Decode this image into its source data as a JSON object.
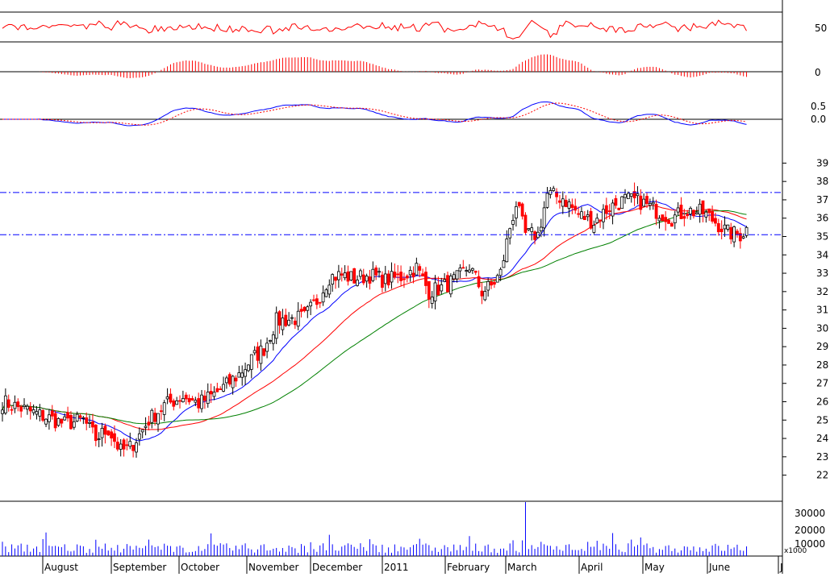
{
  "chart_data": {
    "type": "candlestick",
    "title": "",
    "colors": {
      "up": "#000000",
      "down": "#ff0000",
      "upFill": "#ffffff",
      "ma_short": "#0000ff",
      "ma_mid": "#ff0000",
      "ma_long": "#008000",
      "hline": "#0000ff",
      "volume": "#0000ff",
      "rsi": "#ff0000",
      "macd": "#0000ff",
      "hist": "#ff0000"
    },
    "x_month_labels": [
      "August",
      "September",
      "October",
      "November",
      "December",
      "2011",
      "February",
      "March",
      "April",
      "May",
      "June",
      "J"
    ],
    "price_axis": {
      "ticks": [
        22,
        23,
        24,
        25,
        26,
        27,
        28,
        29,
        30,
        31,
        32,
        33,
        34,
        35,
        36,
        37,
        38,
        39
      ],
      "ylim": [
        21.5,
        39.5
      ]
    },
    "horizontal_lines": [
      37.4,
      35.1
    ],
    "volume_axis": {
      "ticks": [
        "30000",
        "20000",
        "10000"
      ],
      "unit": "x1000"
    },
    "macd_hist_axis": {
      "ticks": [
        "0"
      ]
    },
    "rsi_axis": {
      "ticks": [
        "50"
      ]
    },
    "macd_axis": {
      "ticks": [
        "0.5",
        "0.0"
      ]
    },
    "price_anchor_points": [
      [
        0,
        26.0
      ],
      [
        10,
        25.4
      ],
      [
        20,
        24.8
      ],
      [
        26,
        25.0
      ],
      [
        30,
        24.0
      ],
      [
        34,
        24.5
      ],
      [
        38,
        23.3
      ],
      [
        41,
        23.5
      ],
      [
        44,
        24.2
      ],
      [
        47,
        25.0
      ],
      [
        52,
        25.8
      ],
      [
        58,
        26.3
      ],
      [
        63,
        25.9
      ],
      [
        68,
        26.4
      ],
      [
        72,
        26.9
      ],
      [
        76,
        27.5
      ],
      [
        80,
        28.3
      ],
      [
        84,
        28.9
      ],
      [
        88,
        30.4
      ],
      [
        93,
        30.5
      ],
      [
        97,
        30.6
      ],
      [
        101,
        31.5
      ],
      [
        105,
        32.8
      ],
      [
        109,
        32.9
      ],
      [
        113,
        32.7
      ],
      [
        118,
        32.9
      ],
      [
        123,
        32.6
      ],
      [
        128,
        32.8
      ],
      [
        133,
        33.3
      ],
      [
        137,
        32.0
      ],
      [
        141,
        32.2
      ],
      [
        146,
        32.7
      ],
      [
        150,
        33.4
      ],
      [
        154,
        32.0
      ],
      [
        157,
        32.3
      ],
      [
        160,
        33.0
      ],
      [
        163,
        35.5
      ],
      [
        165,
        36.8
      ],
      [
        168,
        35.1
      ],
      [
        172,
        35.1
      ],
      [
        175,
        37.3
      ],
      [
        180,
        37.1
      ],
      [
        185,
        36.2
      ],
      [
        190,
        35.8
      ],
      [
        195,
        36.6
      ],
      [
        200,
        37.0
      ],
      [
        205,
        36.9
      ],
      [
        210,
        36.4
      ],
      [
        215,
        36.0
      ],
      [
        220,
        36.4
      ],
      [
        225,
        36.3
      ],
      [
        229,
        35.8
      ],
      [
        233,
        35.2
      ],
      [
        237,
        35.1
      ],
      [
        239,
        35.4
      ]
    ],
    "price_range": [
      22.5,
      38.5
    ],
    "volume_peak": 33500
  }
}
